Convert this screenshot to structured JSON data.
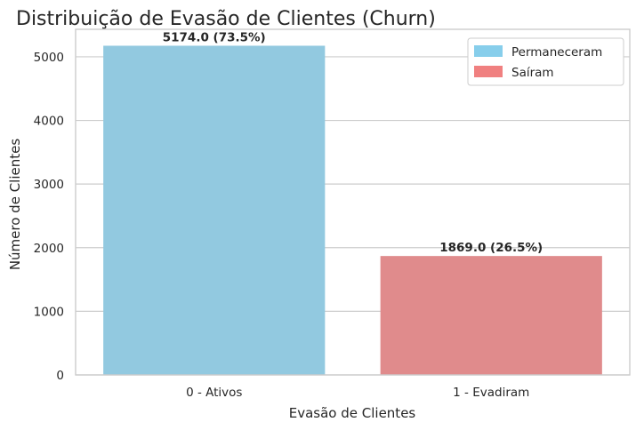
{
  "chart_data": {
    "type": "bar",
    "title": "Distribuição de Evasão de Clientes (Churn)",
    "xlabel": "Evasão de Clientes",
    "ylabel": "Número de Clientes",
    "categories": [
      "0 - Ativos",
      "1 - Evadiram"
    ],
    "values": [
      5174,
      1869
    ],
    "data_labels": [
      "5174.0 (73.5%)",
      "1869.0 (26.5%)"
    ],
    "colors": [
      "#92c9e0",
      "#e08b8c"
    ],
    "ylim": [
      0,
      5432
    ],
    "yticks": [
      0,
      1000,
      2000,
      3000,
      4000,
      5000
    ],
    "grid": "horizontal",
    "legend": {
      "placement": "top-right",
      "entries": [
        {
          "label": "Permaneceram",
          "color": "#87ceeb"
        },
        {
          "label": "Saíram",
          "color": "#f08080"
        }
      ]
    }
  }
}
